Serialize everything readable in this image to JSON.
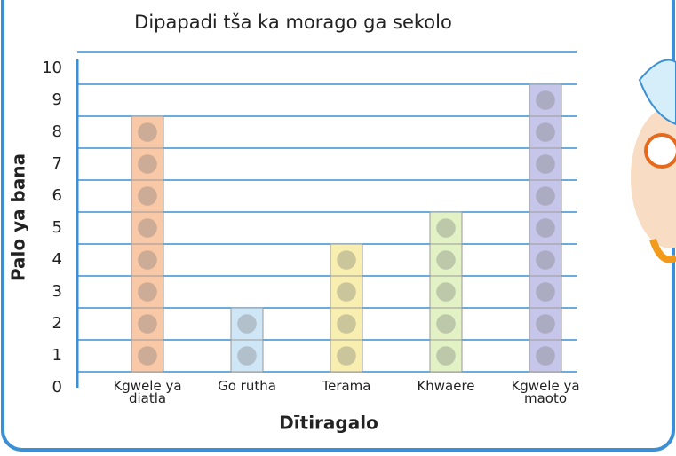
{
  "chart_data": {
    "type": "pictograph",
    "title": "Dipapadi tša ka  morago ga sekolo",
    "x_label": "Dītiragalo",
    "y_label": "Palo ya bana",
    "categories": [
      "Kgwele ya diatla",
      "Go rutha",
      "Terama",
      "Khwaere",
      "Kgwele ya maoto"
    ],
    "values": [
      8,
      2,
      4,
      5,
      9
    ],
    "colors": [
      "#f9c8a6",
      "#cfe6f6",
      "#f8eeb0",
      "#e2f2c4",
      "#c6c6ea"
    ],
    "ylim": [
      0,
      10
    ],
    "yticks": [
      0,
      1,
      2,
      3,
      4,
      5,
      6,
      7,
      8,
      9,
      10
    ],
    "grid": true
  }
}
